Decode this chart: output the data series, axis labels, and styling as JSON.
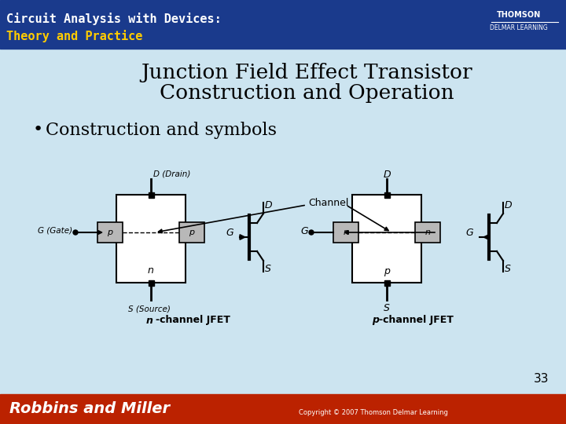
{
  "title_line1": "Junction Field Effect Transistor",
  "title_line2": "Construction and Operation",
  "bullet": "Construction and symbols",
  "copyright": "Copyright © 2007 Thomson Delmar Learning",
  "page_number": "33",
  "bg_color": "#cce4f0",
  "header_bg": "#1a3a8c",
  "footer_bg": "#bb2200",
  "white": "#ffffff",
  "black": "#000000",
  "gray_box": "#b8b8b8",
  "n_channel_label": "n-channel JFET",
  "p_channel_label": "p-channel JFET",
  "channel_label": "Channel",
  "header_line1": "Circuit Analysis with Devices:",
  "header_line2": "Theory and Practice",
  "footer_author": "Robbins and Miller",
  "thomson": "THOMSON",
  "delmar": "DELMAR LEARNING"
}
